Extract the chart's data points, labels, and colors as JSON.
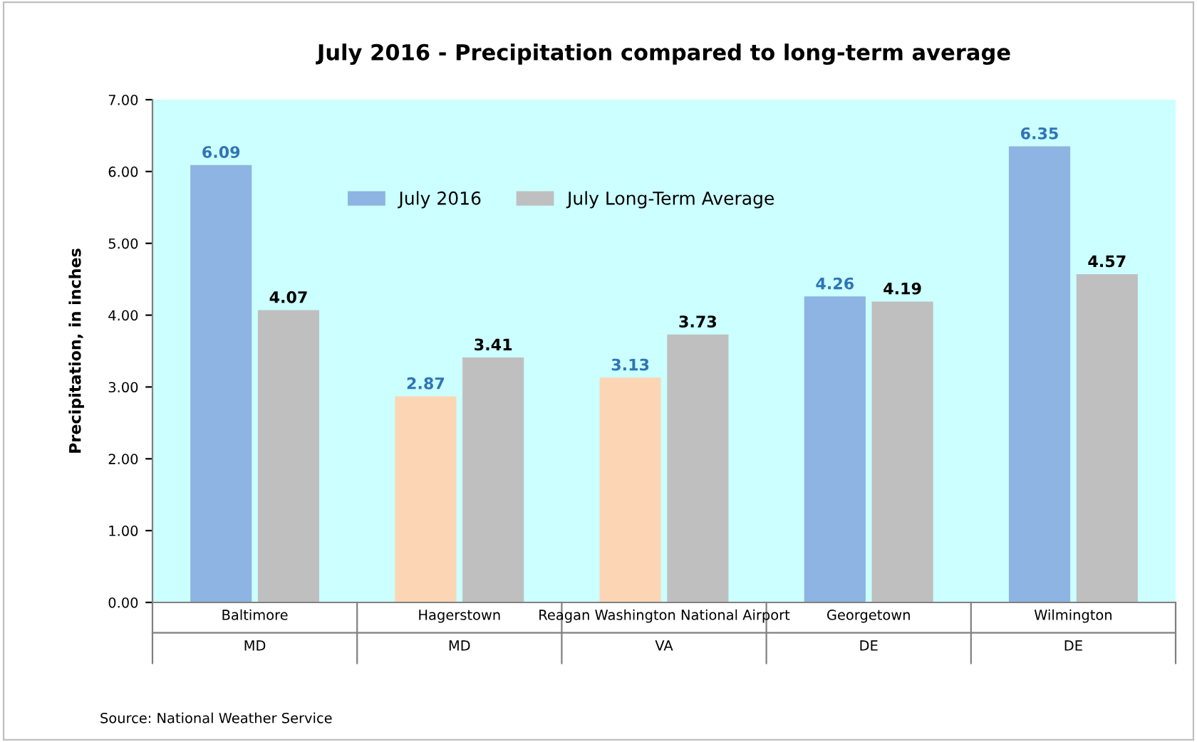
{
  "chart_data": {
    "type": "bar",
    "title": "July 2016 - Precipitation compared to long-term average",
    "ylabel": "Precipitation, in inches",
    "categories": [
      "Baltimore",
      "Hagerstown",
      "Reagan Washington National Airport",
      "Georgetown",
      "Wilmington"
    ],
    "series": [
      {
        "name": "July 2016",
        "color": "#8db4e2",
        "colors": [
          "#8db4e2",
          "#fcd5b5",
          "#fcd5b5",
          "#8db4e2",
          "#8db4e2"
        ],
        "values": [
          6.09,
          2.87,
          3.13,
          4.26,
          6.35
        ]
      },
      {
        "name": "July Long-Term Average",
        "color": "#bfbfbf",
        "values": [
          4.07,
          3.41,
          3.73,
          4.19,
          4.57
        ]
      }
    ],
    "ylim": [
      0,
      7
    ],
    "yticks": [
      {
        "value": 0,
        "label": "0.00"
      },
      {
        "value": 1,
        "label": "1.00"
      },
      {
        "value": 2,
        "label": "2.00"
      },
      {
        "value": 3,
        "label": "3.00"
      },
      {
        "value": 4,
        "label": "4.00"
      },
      {
        "value": 5,
        "label": "5.00"
      },
      {
        "value": 6,
        "label": "6.00"
      },
      {
        "value": 7,
        "label": "7.00"
      }
    ],
    "data_labels": true,
    "legend": "top",
    "grid": false,
    "annotations": [
      "MD",
      "MD",
      "VA",
      "DE",
      "DE",
      "Source: National Weather Service"
    ]
  }
}
